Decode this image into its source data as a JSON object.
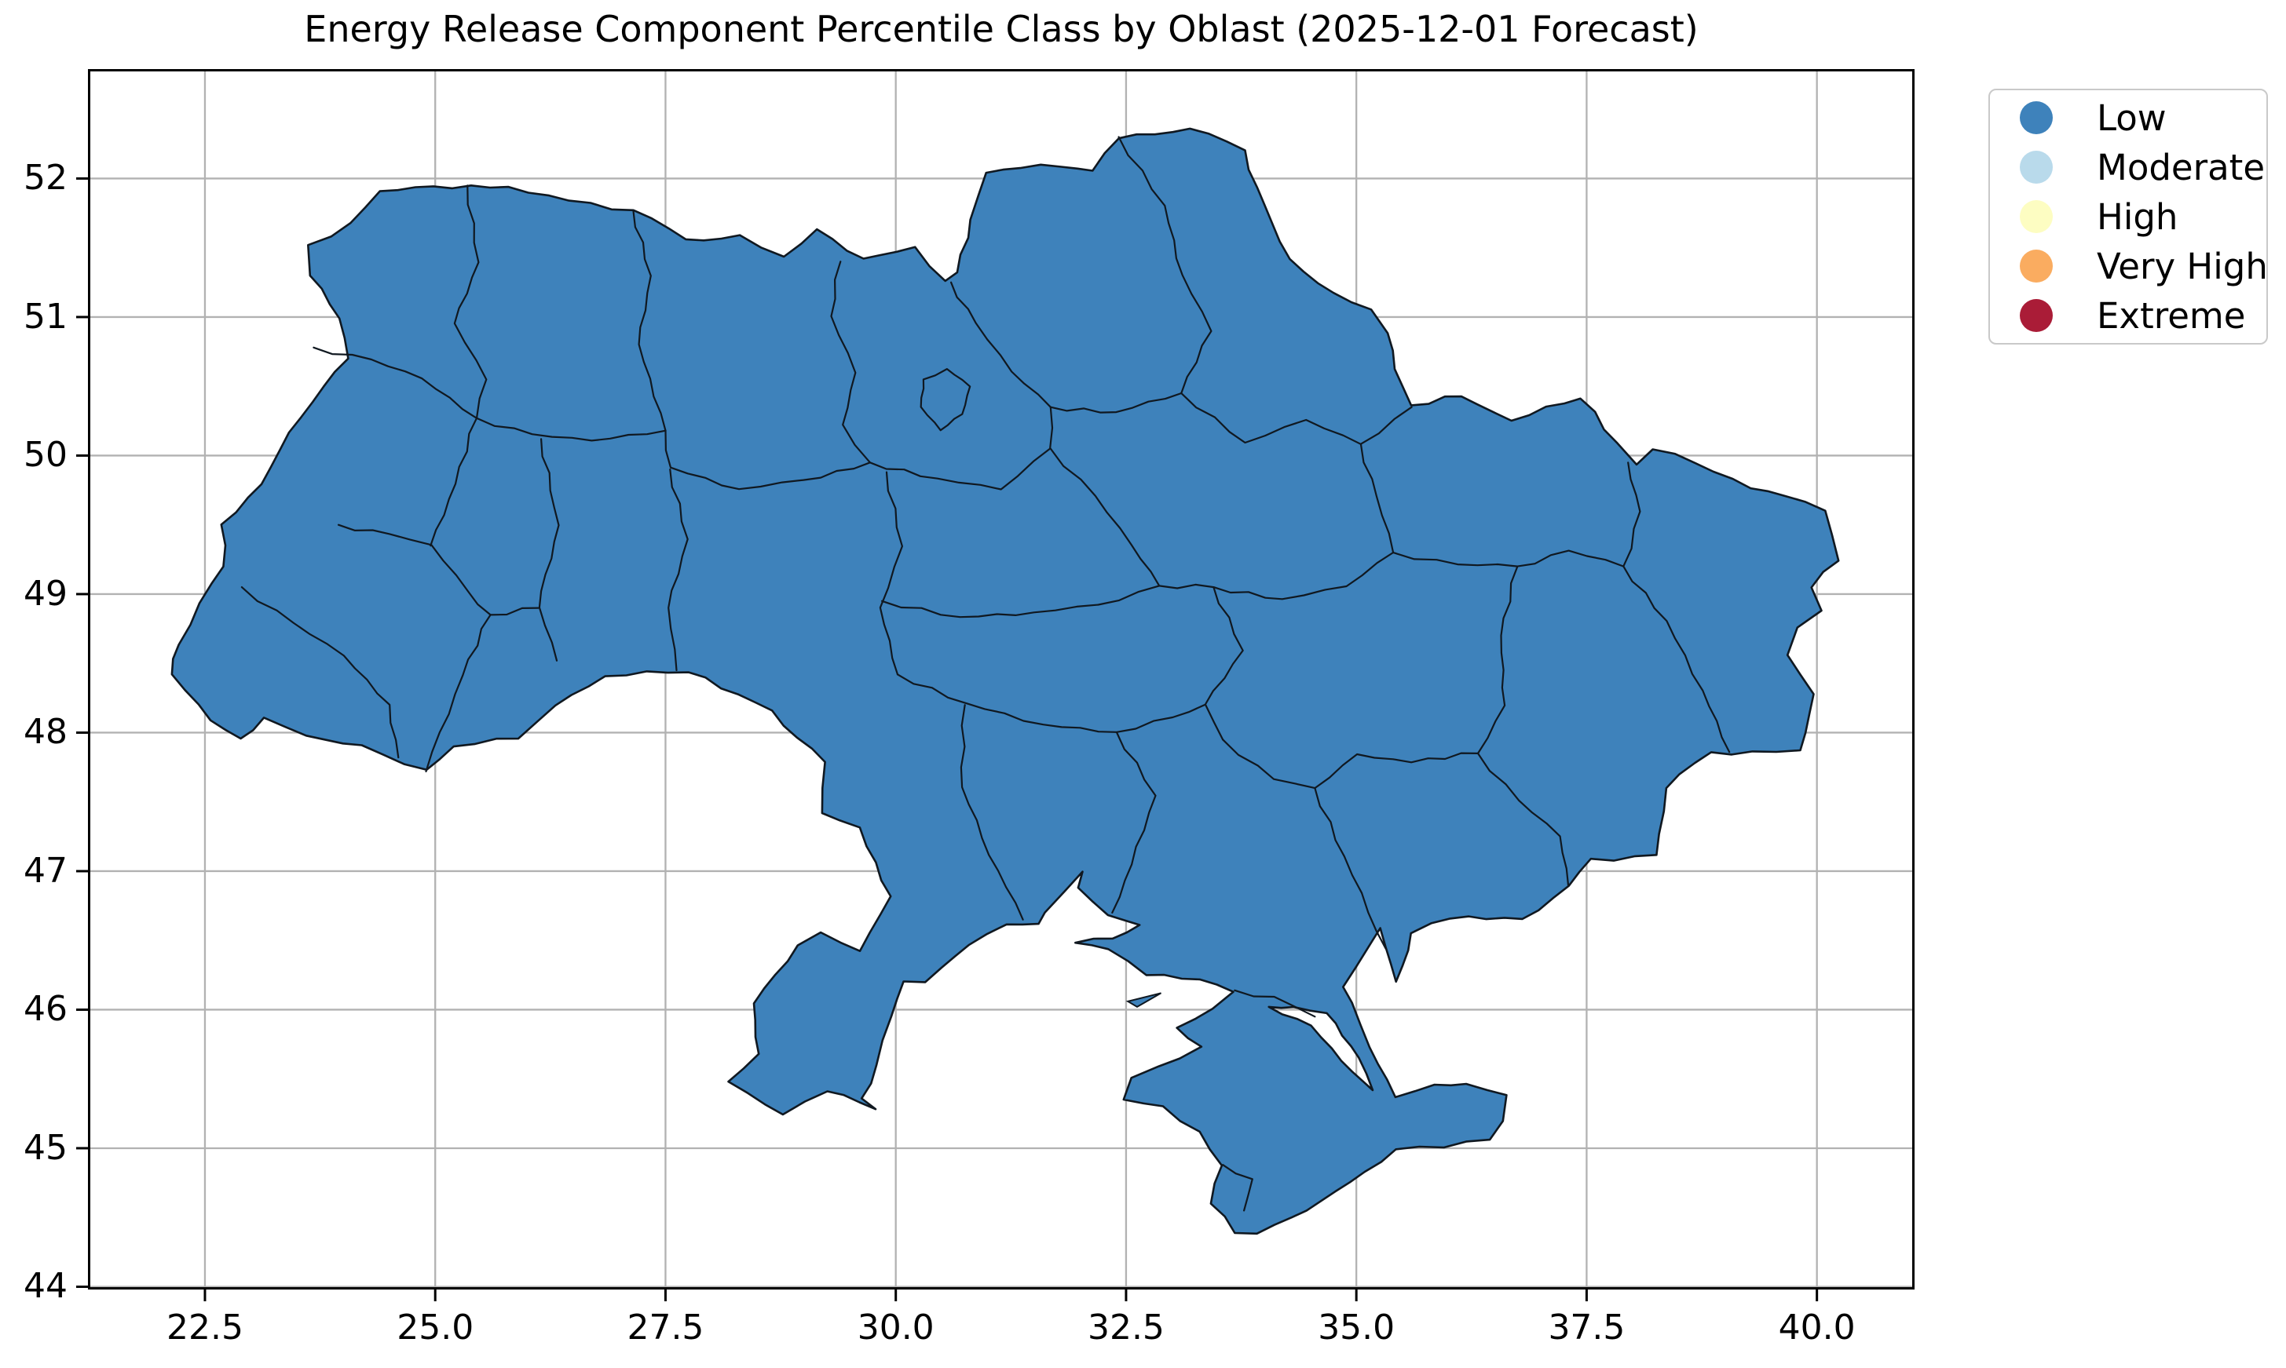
{
  "chart_data": {
    "type": "map",
    "subtype": "choropleth",
    "title": "Energy Release Component Percentile Class by Oblast (2025-12-01 Forecast)",
    "region": "Ukraine oblasts",
    "all_visible_regions_class": "Low",
    "grid": true,
    "legend_position": "upper right, outside axes",
    "xlim": [
      21.23,
      41.06
    ],
    "ylim": [
      43.98,
      52.79
    ],
    "x_ticks": [
      22.5,
      25.0,
      27.5,
      30.0,
      32.5,
      35.0,
      37.5,
      40.0
    ],
    "x_tick_labels": [
      "22.5",
      "25.0",
      "27.5",
      "30.0",
      "32.5",
      "35.0",
      "37.5",
      "40.0"
    ],
    "y_ticks": [
      44,
      45,
      46,
      47,
      48,
      49,
      50,
      51,
      52
    ],
    "y_tick_labels": [
      "44",
      "45",
      "46",
      "47",
      "48",
      "49",
      "50",
      "51",
      "52"
    ],
    "classes": [
      {
        "label": "Low",
        "color": "#3e82bb"
      },
      {
        "label": "Moderate",
        "color": "#b9daeb"
      },
      {
        "label": "High",
        "color": "#fdfdc2"
      },
      {
        "label": "Very High",
        "color": "#faac60"
      },
      {
        "label": "Extreme",
        "color": "#aa1c37"
      }
    ]
  },
  "styles": {
    "map_fill": "#3e82bb",
    "map_edge": "#101820",
    "grid_color": "#b2b2b2",
    "spine_color": "#000000",
    "tick_color": "#000000",
    "legend_border": "#c9c9c9"
  },
  "map_geometry": {
    "outline": [
      [
        23.62,
        51.52
      ],
      [
        24.1,
        51.67
      ],
      [
        24.4,
        51.9
      ],
      [
        24.98,
        51.94
      ],
      [
        25.8,
        51.95
      ],
      [
        26.45,
        51.83
      ],
      [
        27.15,
        51.77
      ],
      [
        27.72,
        51.56
      ],
      [
        28.3,
        51.58
      ],
      [
        28.78,
        51.44
      ],
      [
        29.15,
        51.64
      ],
      [
        29.65,
        51.42
      ],
      [
        30.2,
        51.5
      ],
      [
        30.55,
        51.25
      ],
      [
        30.68,
        51.32
      ],
      [
        30.82,
        51.7
      ],
      [
        30.98,
        52.05
      ],
      [
        31.35,
        52.08
      ],
      [
        31.8,
        52.1
      ],
      [
        32.15,
        52.05
      ],
      [
        32.42,
        52.3
      ],
      [
        33.2,
        52.37
      ],
      [
        33.78,
        52.2
      ],
      [
        34.08,
        51.68
      ],
      [
        34.28,
        51.42
      ],
      [
        34.75,
        51.17
      ],
      [
        35.15,
        51.05
      ],
      [
        35.32,
        50.88
      ],
      [
        35.48,
        50.5
      ],
      [
        35.6,
        50.35
      ],
      [
        36.15,
        50.44
      ],
      [
        36.68,
        50.26
      ],
      [
        37.45,
        50.42
      ],
      [
        37.82,
        50.08
      ],
      [
        38.05,
        49.93
      ],
      [
        38.22,
        50.05
      ],
      [
        38.68,
        49.95
      ],
      [
        39.28,
        49.76
      ],
      [
        39.65,
        49.72
      ],
      [
        40.08,
        49.6
      ],
      [
        40.22,
        49.25
      ],
      [
        39.95,
        49.05
      ],
      [
        40.05,
        48.88
      ],
      [
        39.78,
        48.76
      ],
      [
        39.68,
        48.56
      ],
      [
        39.95,
        48.28
      ],
      [
        39.82,
        47.86
      ],
      [
        39.3,
        47.85
      ],
      [
        38.85,
        47.86
      ],
      [
        38.36,
        47.6
      ],
      [
        38.26,
        47.1
      ],
      [
        37.56,
        47.08
      ],
      [
        37.3,
        46.9
      ],
      [
        36.8,
        46.64
      ],
      [
        36.22,
        46.68
      ],
      [
        35.82,
        46.62
      ],
      [
        35.6,
        46.55
      ],
      [
        35.42,
        46.2
      ],
      [
        35.28,
        46.58
      ],
      [
        34.88,
        46.17
      ],
      [
        34.95,
        46.05
      ],
      [
        35.12,
        45.72
      ],
      [
        35.42,
        45.38
      ],
      [
        35.85,
        45.45
      ],
      [
        36.2,
        45.48
      ],
      [
        36.65,
        45.38
      ],
      [
        36.58,
        45.2
      ],
      [
        36.45,
        45.05
      ],
      [
        35.95,
        45.02
      ],
      [
        35.42,
        45.0
      ],
      [
        35.1,
        44.82
      ],
      [
        34.6,
        44.62
      ],
      [
        34.3,
        44.5
      ],
      [
        33.92,
        44.4
      ],
      [
        33.7,
        44.4
      ],
      [
        33.42,
        44.6
      ],
      [
        33.55,
        44.88
      ],
      [
        33.3,
        45.12
      ],
      [
        32.9,
        45.3
      ],
      [
        32.48,
        45.35
      ],
      [
        32.55,
        45.52
      ],
      [
        32.85,
        45.6
      ],
      [
        33.3,
        45.72
      ],
      [
        33.05,
        45.87
      ],
      [
        33.45,
        46.0
      ],
      [
        33.67,
        46.14
      ],
      [
        33.3,
        46.22
      ],
      [
        32.72,
        46.25
      ],
      [
        32.3,
        46.42
      ],
      [
        31.95,
        46.48
      ],
      [
        32.35,
        46.52
      ],
      [
        32.65,
        46.62
      ],
      [
        32.3,
        46.68
      ],
      [
        31.98,
        46.88
      ],
      [
        32.02,
        47.0
      ],
      [
        31.85,
        46.85
      ],
      [
        31.62,
        46.7
      ],
      [
        31.55,
        46.62
      ],
      [
        31.2,
        46.62
      ],
      [
        30.78,
        46.48
      ],
      [
        30.5,
        46.3
      ],
      [
        30.32,
        46.2
      ],
      [
        30.1,
        46.2
      ],
      [
        29.95,
        45.95
      ],
      [
        29.8,
        45.6
      ],
      [
        29.62,
        45.35
      ],
      [
        29.78,
        45.28
      ],
      [
        29.25,
        45.42
      ],
      [
        28.78,
        45.25
      ],
      [
        28.2,
        45.47
      ],
      [
        28.5,
        45.68
      ],
      [
        28.45,
        46.05
      ],
      [
        28.95,
        46.45
      ],
      [
        29.18,
        46.55
      ],
      [
        29.62,
        46.42
      ],
      [
        29.95,
        46.82
      ],
      [
        29.6,
        47.3
      ],
      [
        29.18,
        47.42
      ],
      [
        29.22,
        47.78
      ],
      [
        28.65,
        48.15
      ],
      [
        27.75,
        48.45
      ],
      [
        26.85,
        48.4
      ],
      [
        26.3,
        48.2
      ],
      [
        25.9,
        47.96
      ],
      [
        25.2,
        47.9
      ],
      [
        24.9,
        47.72
      ],
      [
        24.2,
        47.9
      ],
      [
        23.6,
        47.98
      ],
      [
        23.15,
        48.1
      ],
      [
        22.88,
        47.95
      ],
      [
        22.58,
        48.1
      ],
      [
        22.15,
        48.42
      ],
      [
        22.2,
        48.64
      ],
      [
        22.56,
        49.08
      ],
      [
        22.72,
        49.2
      ],
      [
        22.68,
        49.5
      ],
      [
        23.1,
        49.8
      ],
      [
        23.65,
        50.4
      ],
      [
        24.05,
        50.7
      ],
      [
        23.98,
        51.0
      ],
      [
        23.65,
        51.3
      ]
    ],
    "sivash_hole": [
      [
        34.05,
        46.02
      ],
      [
        34.5,
        45.88
      ],
      [
        34.95,
        45.55
      ],
      [
        35.18,
        45.42
      ],
      [
        35.02,
        45.65
      ],
      [
        34.68,
        45.98
      ],
      [
        34.32,
        46.02
      ]
    ],
    "islets": [
      [
        [
          32.52,
          46.06
        ],
        [
          32.88,
          46.12
        ],
        [
          32.62,
          46.02
        ]
      ]
    ],
    "internal_borders": [
      [
        [
          25.35,
          51.95
        ],
        [
          25.45,
          51.4
        ],
        [
          25.2,
          50.95
        ],
        [
          25.55,
          50.55
        ],
        [
          25.45,
          50.27
        ]
      ],
      [
        [
          23.68,
          50.78
        ],
        [
          24.3,
          50.68
        ],
        [
          24.85,
          50.55
        ],
        [
          25.45,
          50.27
        ]
      ],
      [
        [
          25.45,
          50.27
        ],
        [
          26.05,
          50.14
        ],
        [
          26.7,
          50.1
        ],
        [
          27.5,
          50.18
        ]
      ],
      [
        [
          27.15,
          51.77
        ],
        [
          27.32,
          51.3
        ],
        [
          27.2,
          50.8
        ],
        [
          27.5,
          50.18
        ]
      ],
      [
        [
          29.4,
          51.4
        ],
        [
          29.28,
          51.0
        ],
        [
          29.55,
          50.6
        ],
        [
          29.42,
          50.22
        ],
        [
          29.72,
          49.95
        ]
      ],
      [
        [
          27.5,
          50.18
        ],
        [
          27.55,
          49.9
        ],
        [
          28.3,
          49.75
        ],
        [
          29.0,
          49.82
        ],
        [
          29.72,
          49.95
        ]
      ],
      [
        [
          27.55,
          49.9
        ],
        [
          27.72,
          49.4
        ],
        [
          27.52,
          48.9
        ],
        [
          27.62,
          48.45
        ]
      ],
      [
        [
          26.15,
          50.12
        ],
        [
          26.32,
          49.5
        ],
        [
          26.12,
          48.9
        ],
        [
          26.32,
          48.52
        ]
      ],
      [
        [
          25.45,
          50.27
        ],
        [
          25.2,
          49.8
        ],
        [
          24.95,
          49.35
        ]
      ],
      [
        [
          23.95,
          49.5
        ],
        [
          24.5,
          49.42
        ],
        [
          24.95,
          49.35
        ],
        [
          25.35,
          49.02
        ],
        [
          25.6,
          48.85
        ]
      ],
      [
        [
          25.6,
          48.85
        ],
        [
          26.12,
          48.9
        ]
      ],
      [
        [
          25.6,
          48.85
        ],
        [
          25.28,
          48.42
        ],
        [
          24.9,
          47.72
        ]
      ],
      [
        [
          22.9,
          49.05
        ],
        [
          23.45,
          48.78
        ],
        [
          24.0,
          48.55
        ],
        [
          24.5,
          48.2
        ],
        [
          24.6,
          47.82
        ]
      ],
      [
        [
          30.6,
          51.25
        ],
        [
          30.85,
          50.95
        ],
        [
          31.25,
          50.6
        ],
        [
          31.68,
          50.35
        ]
      ],
      [
        [
          32.42,
          52.3
        ],
        [
          32.9,
          51.8
        ],
        [
          33.1,
          51.3
        ],
        [
          33.42,
          50.9
        ],
        [
          33.1,
          50.45
        ]
      ],
      [
        [
          31.68,
          50.35
        ],
        [
          32.4,
          50.3
        ],
        [
          33.1,
          50.45
        ]
      ],
      [
        [
          33.1,
          50.45
        ],
        [
          33.8,
          50.08
        ],
        [
          34.45,
          50.25
        ],
        [
          35.05,
          50.08
        ],
        [
          35.6,
          50.35
        ]
      ],
      [
        [
          29.72,
          49.95
        ],
        [
          30.45,
          49.82
        ],
        [
          31.15,
          49.75
        ],
        [
          31.68,
          50.05
        ],
        [
          31.68,
          50.35
        ]
      ],
      [
        [
          29.9,
          49.88
        ],
        [
          30.05,
          49.35
        ],
        [
          29.82,
          48.9
        ],
        [
          30.02,
          48.42
        ]
      ],
      [
        [
          29.85,
          48.95
        ],
        [
          30.7,
          48.82
        ],
        [
          31.5,
          48.86
        ],
        [
          32.2,
          48.92
        ],
        [
          32.86,
          49.06
        ]
      ],
      [
        [
          31.68,
          50.05
        ],
        [
          32.15,
          49.7
        ],
        [
          32.55,
          49.35
        ],
        [
          32.86,
          49.06
        ]
      ],
      [
        [
          32.86,
          49.06
        ],
        [
          33.45,
          49.05
        ]
      ],
      [
        [
          33.45,
          49.05
        ],
        [
          34.2,
          48.95
        ],
        [
          34.9,
          49.05
        ],
        [
          35.4,
          49.3
        ]
      ],
      [
        [
          35.05,
          50.08
        ],
        [
          35.2,
          49.7
        ],
        [
          35.4,
          49.3
        ]
      ],
      [
        [
          35.4,
          49.3
        ],
        [
          36.1,
          49.2
        ],
        [
          36.75,
          49.2
        ]
      ],
      [
        [
          36.75,
          49.2
        ],
        [
          37.3,
          49.3
        ],
        [
          37.9,
          49.2
        ]
      ],
      [
        [
          37.9,
          49.2
        ],
        [
          38.1,
          49.6
        ],
        [
          37.95,
          49.95
        ]
      ],
      [
        [
          37.9,
          49.2
        ],
        [
          38.35,
          48.8
        ],
        [
          38.75,
          48.3
        ],
        [
          39.05,
          47.86
        ]
      ],
      [
        [
          36.75,
          49.2
        ],
        [
          36.55,
          48.7
        ],
        [
          36.6,
          48.2
        ],
        [
          36.32,
          47.85
        ]
      ],
      [
        [
          36.32,
          47.85
        ],
        [
          36.75,
          47.5
        ],
        [
          37.2,
          47.25
        ],
        [
          37.3,
          46.9
        ]
      ],
      [
        [
          36.32,
          47.85
        ],
        [
          35.6,
          47.8
        ],
        [
          35.0,
          47.85
        ],
        [
          34.55,
          47.6
        ]
      ],
      [
        [
          33.45,
          49.05
        ],
        [
          33.75,
          48.6
        ],
        [
          33.35,
          48.2
        ],
        [
          33.55,
          47.95
        ]
      ],
      [
        [
          33.55,
          47.95
        ],
        [
          34.1,
          47.65
        ],
        [
          34.55,
          47.6
        ]
      ],
      [
        [
          34.55,
          47.6
        ],
        [
          34.85,
          47.1
        ],
        [
          35.32,
          46.44
        ]
      ],
      [
        [
          30.02,
          48.42
        ],
        [
          30.75,
          48.2
        ],
        [
          31.6,
          48.05
        ],
        [
          32.4,
          48.0
        ],
        [
          33.0,
          48.12
        ],
        [
          33.35,
          48.2
        ]
      ],
      [
        [
          30.75,
          48.2
        ],
        [
          30.7,
          47.6
        ],
        [
          31.1,
          47.0
        ],
        [
          31.38,
          46.65
        ]
      ],
      [
        [
          32.4,
          48.0
        ],
        [
          32.8,
          47.55
        ],
        [
          32.55,
          47.05
        ],
        [
          32.35,
          46.7
        ]
      ],
      [
        [
          33.68,
          46.14
        ],
        [
          34.1,
          46.08
        ],
        [
          34.55,
          45.95
        ]
      ],
      [
        [
          33.55,
          44.88
        ],
        [
          33.85,
          44.78
        ],
        [
          33.78,
          44.55
        ]
      ]
    ],
    "city_loops": [
      [
        [
          30.3,
          50.55
        ],
        [
          30.55,
          50.62
        ],
        [
          30.8,
          50.5
        ],
        [
          30.72,
          50.3
        ],
        [
          30.48,
          50.18
        ],
        [
          30.28,
          50.35
        ]
      ]
    ]
  }
}
